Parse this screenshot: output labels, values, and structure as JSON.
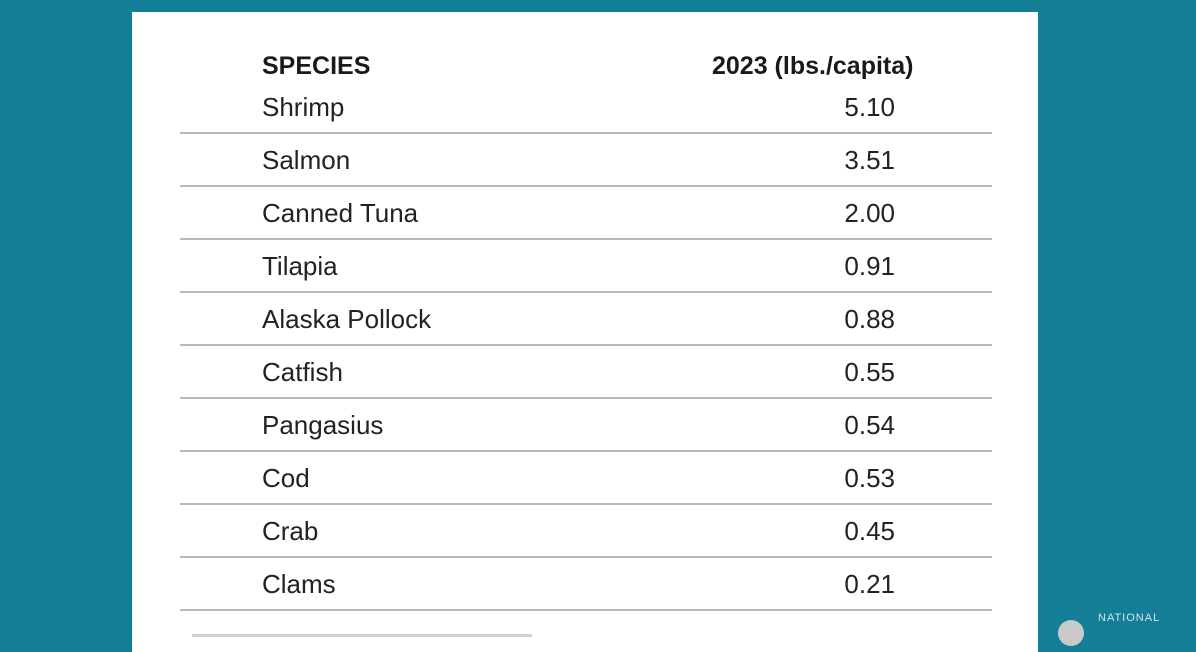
{
  "table": {
    "headers": {
      "species": "SPECIES",
      "value": "2023 (lbs./capita)"
    },
    "rows": [
      {
        "species": "Shrimp",
        "value": "5.10"
      },
      {
        "species": "Salmon",
        "value": "3.51"
      },
      {
        "species": "Canned Tuna",
        "value": "2.00"
      },
      {
        "species": "Tilapia",
        "value": "0.91"
      },
      {
        "species": "Alaska Pollock",
        "value": "0.88"
      },
      {
        "species": "Catfish",
        "value": "0.55"
      },
      {
        "species": "Pangasius",
        "value": "0.54"
      },
      {
        "species": "Cod",
        "value": "0.53"
      },
      {
        "species": "Crab",
        "value": "0.45"
      },
      {
        "species": "Clams",
        "value": "0.21"
      }
    ]
  },
  "logo": {
    "text": "NATIONAL"
  },
  "colors": {
    "background": "#137e96",
    "card": "#ffffff",
    "rule": "#b9b9b9"
  }
}
